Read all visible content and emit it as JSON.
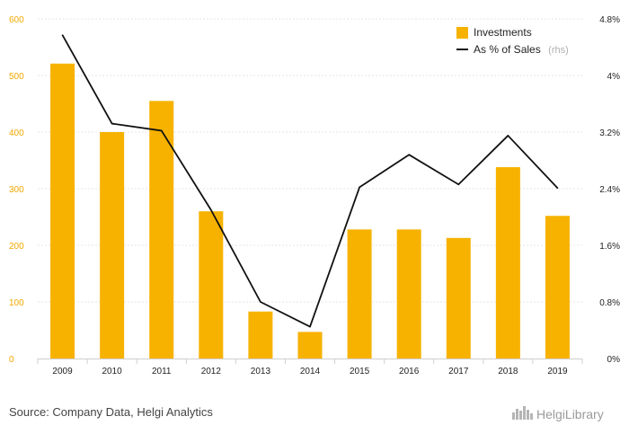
{
  "chart_data": {
    "type": "bar",
    "categories": [
      "2009",
      "2010",
      "2011",
      "2012",
      "2013",
      "2014",
      "2015",
      "2016",
      "2017",
      "2018",
      "2019"
    ],
    "series": [
      {
        "name": "Investments",
        "type": "bar",
        "axis": "left",
        "values": [
          521,
          400,
          455,
          260,
          83,
          47,
          228,
          228,
          213,
          338,
          252
        ]
      },
      {
        "name": "As % of Sales",
        "type": "line",
        "axis": "right",
        "values": [
          4.57,
          3.32,
          3.22,
          2.1,
          0.8,
          0.45,
          2.42,
          2.88,
          2.46,
          3.15,
          2.41
        ]
      }
    ],
    "ylim": [
      0,
      600
    ],
    "y_ticks": [
      "0",
      "100",
      "200",
      "300",
      "400",
      "500",
      "600"
    ],
    "y2lim": [
      0,
      4.8
    ],
    "y2_ticks": [
      "0%",
      "0.8%",
      "1.6%",
      "2.4%",
      "3.2%",
      "4%",
      "4.8%"
    ],
    "legend": {
      "placement": "top-right",
      "items": [
        {
          "label": "Investments",
          "note": ""
        },
        {
          "label": "As % of Sales",
          "note": "(rhs)"
        }
      ]
    },
    "grid": true,
    "colors": {
      "bar": "#f7b200",
      "line": "#111111",
      "grid": "#e6e6e6",
      "left_axis_text": "#f2a800"
    }
  },
  "source": "Source: Company Data, Helgi Analytics",
  "logo": "HelgiLibrary"
}
